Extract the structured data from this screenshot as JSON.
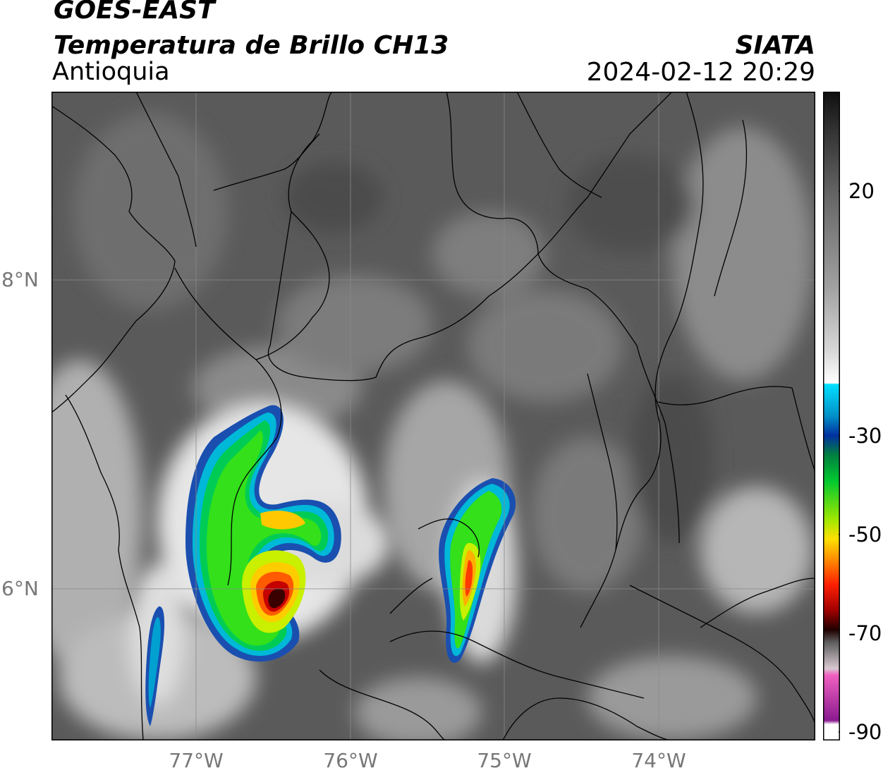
{
  "header": {
    "satellite": "GOES-EAST",
    "product": "Temperatura de Brillo CH13",
    "region": "Antioquia",
    "organization": "SIATA",
    "timestamp": "2024-02-12 20:29"
  },
  "axes": {
    "lat_labels": [
      "8°N",
      "6°N"
    ],
    "lon_labels": [
      "77°W",
      "76°W",
      "75°W",
      "74°W"
    ]
  },
  "colorbar": {
    "tick_labels": [
      "20",
      "-30",
      "-50",
      "-70",
      "-90"
    ]
  },
  "colors": {
    "land_dark": "#555555",
    "frame": "#000000",
    "grid": "#8a8a8a"
  }
}
